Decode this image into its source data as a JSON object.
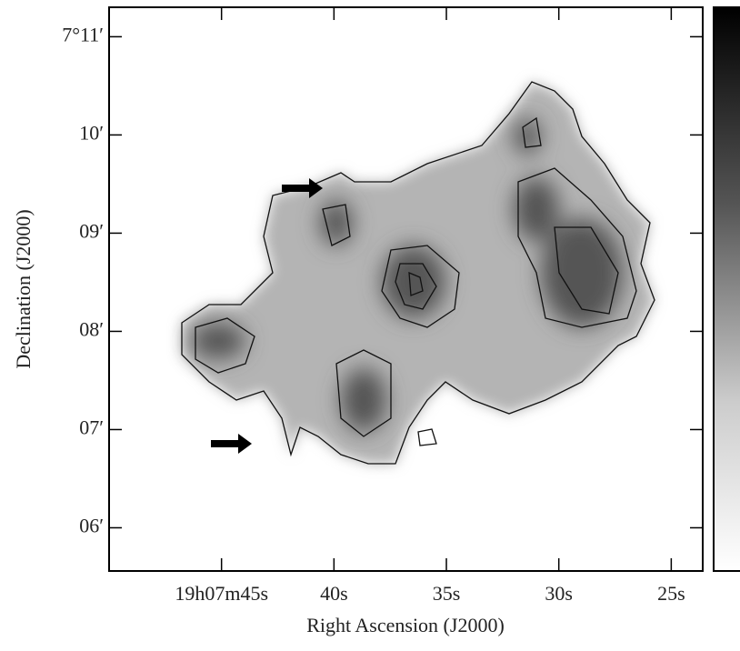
{
  "chart_data": {
    "type": "image",
    "xlabel": "Right Ascension (J2000)",
    "ylabel": "Declination (J2000)",
    "xlim": [
      50,
      23.6
    ],
    "ylim": [
      5.56,
      11.3
    ],
    "xticks": [
      {
        "value": 45,
        "label": "19h07m45s"
      },
      {
        "value": 40,
        "label": "40s"
      },
      {
        "value": 35,
        "label": "35s"
      },
      {
        "value": 30,
        "label": "30s"
      },
      {
        "value": 25,
        "label": "25s"
      }
    ],
    "yticks": [
      {
        "value": 11,
        "label": "7°11′"
      },
      {
        "value": 10,
        "label": "10′"
      },
      {
        "value": 9,
        "label": "09′"
      },
      {
        "value": 8,
        "label": "08′"
      },
      {
        "value": 7,
        "label": "07′"
      },
      {
        "value": 6,
        "label": "06′"
      }
    ]
  }
}
